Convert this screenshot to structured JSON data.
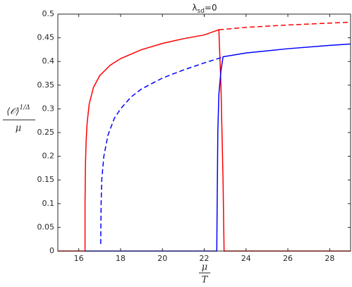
{
  "chart_data": {
    "type": "line",
    "title": {
      "symbol": "λ",
      "subscript": "sd",
      "rest": "=0"
    },
    "xlabel": {
      "numerator": "μ",
      "denominator": "T"
    },
    "ylabel": {
      "numerator": "⟨𝒪⟩",
      "exponent": "1/Δ",
      "denominator": "μ"
    },
    "xlim": [
      15,
      29
    ],
    "ylim": [
      0,
      0.5
    ],
    "xticks": [
      16,
      18,
      20,
      22,
      24,
      26,
      28
    ],
    "yticks": [
      0,
      0.05,
      0.1,
      0.15,
      0.2,
      0.25,
      0.3,
      0.35,
      0.4,
      0.45,
      0.5
    ],
    "grid": false,
    "series": [
      {
        "color": "#ff0000",
        "style": "solid",
        "x": [
          15,
          16.3,
          16.3,
          16.32,
          16.35,
          16.4,
          16.5,
          16.7,
          17,
          17.5,
          18,
          19,
          20,
          21,
          22,
          22.7,
          22.8,
          22.9,
          22.95,
          29
        ],
        "values": [
          0,
          0,
          0.1,
          0.18,
          0.23,
          0.27,
          0.31,
          0.345,
          0.37,
          0.392,
          0.406,
          0.425,
          0.438,
          0.448,
          0.456,
          0.467,
          0.35,
          0.15,
          0,
          0
        ]
      },
      {
        "color": "#ff0000",
        "style": "dashed",
        "x": [
          22.7,
          24,
          26,
          28,
          29
        ],
        "values": [
          0.467,
          0.472,
          0.477,
          0.481,
          0.483
        ]
      },
      {
        "color": "#0000ff",
        "style": "solid",
        "x": [
          16.3,
          22.6,
          22.62,
          22.65,
          22.7,
          22.8,
          22.9,
          24,
          26,
          28,
          29
        ],
        "values": [
          0,
          0,
          0.1,
          0.25,
          0.33,
          0.38,
          0.41,
          0.418,
          0.427,
          0.434,
          0.437
        ]
      },
      {
        "color": "#0000ff",
        "style": "dashed",
        "x": [
          17.05,
          17.07,
          17.1,
          17.2,
          17.4,
          17.7,
          18,
          18.5,
          19,
          20,
          21,
          22,
          22.8
        ],
        "values": [
          0.015,
          0.1,
          0.15,
          0.2,
          0.245,
          0.28,
          0.3,
          0.325,
          0.342,
          0.365,
          0.382,
          0.397,
          0.408
        ]
      }
    ]
  }
}
